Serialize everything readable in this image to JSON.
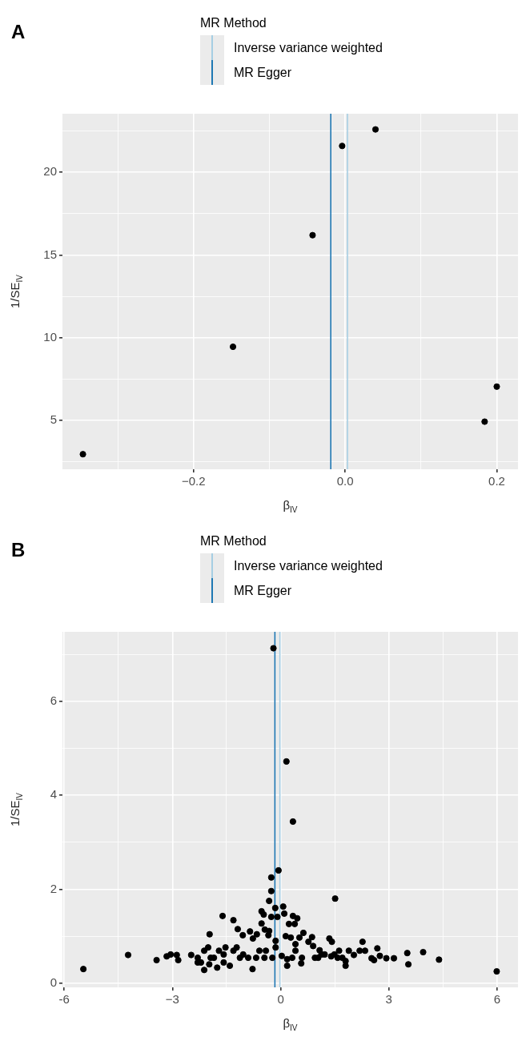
{
  "chart_data": [
    {
      "type": "scatter",
      "title": "A",
      "xlabel": "β$_{IV}$",
      "ylabel": "1/SE$_{IV}$",
      "legend_title": "MR Method",
      "legend": "top",
      "grid": true,
      "marker": "circle",
      "xlim": [
        -0.373,
        0.228
      ],
      "xticks": [
        {
          "value": -0.3,
          "label": null
        },
        {
          "value": -0.2,
          "label": "−0.2"
        },
        {
          "value": -0.1,
          "label": null
        },
        {
          "value": 0,
          "label": "0.0"
        },
        {
          "value": 0.1,
          "label": null
        },
        {
          "value": 0.2,
          "label": "0.2"
        }
      ],
      "ylim": [
        2.04,
        23.55
      ],
      "yticks": [
        {
          "value": 2.5,
          "label": null
        },
        5,
        {
          "value": 7.5,
          "label": null
        },
        10,
        {
          "value": 12.5,
          "label": null
        },
        15,
        {
          "value": 17.5,
          "label": null
        },
        20,
        {
          "value": 22.5,
          "label": null
        }
      ],
      "ref_lines": [
        {
          "axis": "x",
          "value": 0.003,
          "label": "Inverse variance weighted",
          "color": "#a6cee3"
        },
        {
          "axis": "x",
          "value": -0.019,
          "label": "MR Egger",
          "color": "#1f78b4"
        }
      ],
      "series": [
        {
          "color": "#000000",
          "x": [
            -0.346,
            -0.148,
            -0.043,
            -0.004,
            0.04,
            0.184,
            0.2
          ],
          "values": [
            2.95,
            9.45,
            16.2,
            21.6,
            22.6,
            4.92,
            7.04
          ]
        }
      ]
    },
    {
      "type": "scatter",
      "title": "B",
      "xlabel": "β$_{IV}$",
      "ylabel": "1/SE$_{IV}$",
      "legend_title": "MR Method",
      "legend": "top",
      "grid": true,
      "marker": "circle",
      "xlim": [
        -6.05,
        6.58
      ],
      "xticks": [
        -6,
        {
          "value": -4.5,
          "label": null
        },
        {
          "value": -3,
          "label": "−3"
        },
        {
          "value": -1.5,
          "label": null
        },
        0,
        {
          "value": 1.5,
          "label": null
        },
        3,
        {
          "value": 4.5,
          "label": null
        },
        6
      ],
      "ylim": [
        -0.09,
        7.48
      ],
      "yticks": [
        0,
        {
          "value": 1,
          "label": null
        },
        2,
        {
          "value": 3,
          "label": null
        },
        4,
        {
          "value": 5,
          "label": null
        },
        6,
        {
          "value": 7,
          "label": null
        }
      ],
      "ref_lines": [
        {
          "axis": "x",
          "value": -0.02,
          "label": "Inverse variance weighted",
          "color": "#a6cee3"
        },
        {
          "axis": "x",
          "value": -0.16,
          "label": "MR Egger",
          "color": "#1f78b4"
        }
      ],
      "series": [
        {
          "color": "#000000",
          "x": [
            -0.2,
            0.16,
            0.34,
            -0.06,
            -0.26,
            -0.26,
            -0.32,
            1.51,
            -0.15,
            0.07,
            0.1,
            -0.53,
            -0.47,
            -0.26,
            -0.09,
            0.34,
            0.46,
            -1.61,
            -1.31,
            -0.53,
            0.23,
            0.39,
            -1.19,
            -0.44,
            -0.32,
            -0.85,
            -1.05,
            -1.97,
            -0.66,
            -0.77,
            -0.34,
            0.63,
            0.14,
            0.28,
            0.52,
            0.87,
            1.35,
            1.42,
            2.27,
            2.68,
            3.51,
            3.95,
            4.39,
            5.99,
            3.54,
            3.14,
            2.93,
            2.75,
            2.52,
            2.34,
            2.19,
            2.03,
            1.89,
            1.8,
            1.8,
            1.62,
            1.71,
            1.4,
            1.22,
            1.08,
            0.9,
            0.77,
            0.59,
            0.57,
            0.41,
            0.18,
            0.18,
            0.32,
            0.03,
            -0.14,
            -0.23,
            -0.14,
            -0.45,
            -0.59,
            -0.78,
            -0.9,
            -1.04,
            -1.22,
            -1.31,
            -1.41,
            -1.58,
            -1.58,
            -1.71,
            -1.85,
            -1.98,
            -2.01,
            -2.12,
            -1.94,
            -2.21,
            -2.3,
            -2.48,
            -2.84,
            -2.88,
            -3.05,
            -3.16,
            -3.44,
            -4.23,
            -5.47,
            -2.12,
            -2.3,
            -1.76,
            -1.53,
            -1.13,
            -0.68,
            -0.41,
            1.04,
            1.49,
            1.13,
            1.58,
            0.41,
            0.95,
            2.59
          ],
          "values": [
            7.13,
            4.72,
            3.44,
            2.4,
            2.25,
            1.96,
            1.75,
            1.8,
            1.6,
            1.63,
            1.48,
            1.53,
            1.46,
            1.41,
            1.41,
            1.43,
            1.38,
            1.43,
            1.34,
            1.27,
            1.26,
            1.26,
            1.15,
            1.14,
            1.11,
            1.1,
            1.02,
            1.04,
            1.04,
            0.95,
            1.02,
            1.07,
            1,
            0.97,
            0.97,
            0.98,
            0.95,
            0.88,
            0.88,
            0.74,
            0.64,
            0.66,
            0.5,
            0.25,
            0.4,
            0.53,
            0.53,
            0.58,
            0.53,
            0.69,
            0.69,
            0.6,
            0.69,
            0.37,
            0.47,
            0.69,
            0.54,
            0.57,
            0.61,
            0.7,
            0.79,
            0.88,
            0.54,
            0.42,
            0.69,
            0.37,
            0.51,
            0.54,
            0.58,
            0.76,
            0.54,
            0.9,
            0.54,
            0.69,
            0.3,
            0.54,
            0.61,
            0.76,
            0.69,
            0.37,
            0.44,
            0.61,
            0.69,
            0.54,
            0.4,
            0.76,
            0.28,
            0.54,
            0.44,
            0.54,
            0.6,
            0.49,
            0.6,
            0.61,
            0.57,
            0.49,
            0.6,
            0.3,
            0.69,
            0.44,
            0.33,
            0.76,
            0.54,
            0.54,
            0.69,
            0.54,
            0.61,
            0.61,
            0.54,
            0.83,
            0.54,
            0.49
          ]
        }
      ]
    }
  ]
}
